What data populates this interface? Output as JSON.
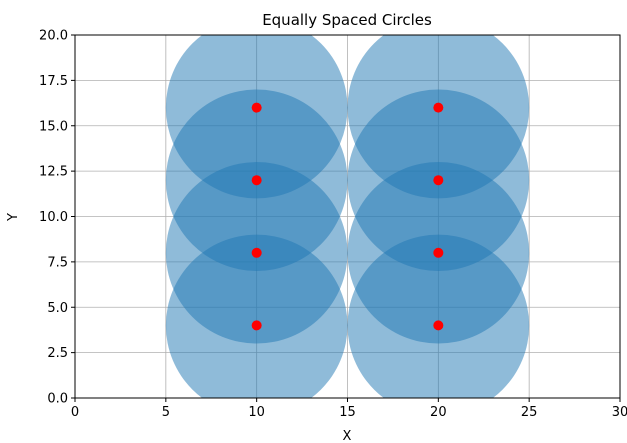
{
  "chart_data": {
    "type": "scatter",
    "title": "Equally Spaced Circles",
    "xlabel": "X",
    "ylabel": "Y",
    "xlim": [
      0,
      30
    ],
    "ylim": [
      0,
      20
    ],
    "xticks": [
      0,
      5,
      10,
      15,
      20,
      25,
      30
    ],
    "yticks": [
      0.0,
      2.5,
      5.0,
      7.5,
      10.0,
      12.5,
      15.0,
      17.5,
      20.0
    ],
    "ytick_labels": [
      "0.0",
      "2.5",
      "5.0",
      "7.5",
      "10.0",
      "12.5",
      "15.0",
      "17.5",
      "20.0"
    ],
    "grid": true,
    "circles": [
      {
        "cx": 10,
        "cy": 4,
        "r": 5
      },
      {
        "cx": 10,
        "cy": 8,
        "r": 5
      },
      {
        "cx": 10,
        "cy": 12,
        "r": 5
      },
      {
        "cx": 10,
        "cy": 16,
        "r": 5
      },
      {
        "cx": 20,
        "cy": 4,
        "r": 5
      },
      {
        "cx": 20,
        "cy": 8,
        "r": 5
      },
      {
        "cx": 20,
        "cy": 12,
        "r": 5
      },
      {
        "cx": 20,
        "cy": 16,
        "r": 5
      }
    ],
    "points": {
      "x": [
        10,
        10,
        10,
        10,
        20,
        20,
        20,
        20
      ],
      "y": [
        4,
        8,
        12,
        16,
        4,
        8,
        12,
        16
      ]
    },
    "colors": {
      "circle_fill": "#1f77b4",
      "circle_alpha": 0.5,
      "point": "#ff0000",
      "grid": "#b0b0b0",
      "axis": "#000000"
    }
  }
}
